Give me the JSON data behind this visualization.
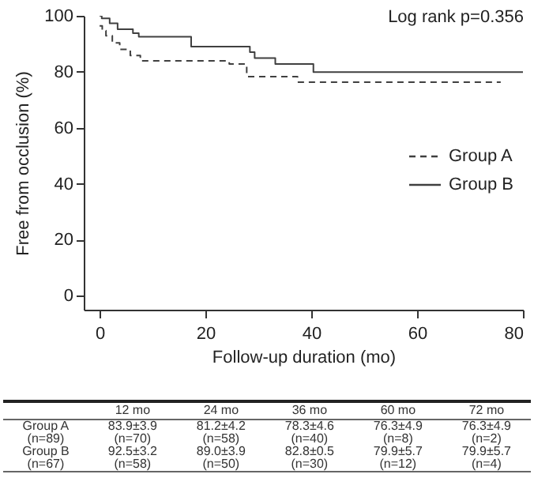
{
  "chart_data": {
    "type": "step",
    "xlabel": "Follow-up duration (mo)",
    "ylabel": "Free from occlusion (%)",
    "xlim": [
      -3,
      80
    ],
    "xticks": [
      0,
      20,
      40,
      60,
      80
    ],
    "ylim": [
      -5,
      100
    ],
    "yticks": [
      0,
      20,
      40,
      60,
      80,
      100
    ],
    "grid": false,
    "legend": "right",
    "series": [
      {
        "name": "Group A",
        "color": "#404040",
        "line_style": "dashed",
        "x": [
          0,
          0.5,
          1.2,
          2.4,
          3.8,
          5.8,
          7.7,
          24.5,
          27.8,
          37.4,
          75.8
        ],
        "values": [
          96.4,
          94.7,
          92.9,
          90.3,
          88,
          85.8,
          83.9,
          82.8,
          78.3,
          76.3,
          76.3
        ]
      },
      {
        "name": "Group B",
        "color": "#404040",
        "line_style": "solid",
        "x": [
          0,
          0.4,
          1.9,
          3.4,
          6.3,
          7.4,
          17.3,
          28.4,
          29.3,
          33.2,
          40.4,
          80
        ],
        "values": [
          100,
          99.1,
          97.3,
          95.2,
          93.8,
          92.5,
          89,
          87,
          84.9,
          82.8,
          79.9,
          79.9
        ]
      }
    ],
    "annotations": [
      "Log rank p=0.356",
      "12 mo",
      "24 mo",
      "36 mo",
      "60 mo",
      "72 mo",
      "Group A",
      "83.9±3.9",
      "81.2±4.2",
      "78.3±4.6",
      "76.3±4.9",
      "76.3±4.9",
      "(n=89)",
      "(n=70)",
      "(n=58)",
      "(n=40)",
      "(n=8)",
      "(n=2)",
      "Group B",
      "92.5±3.2",
      "89.0±3.9",
      "82.8±0.5",
      "79.9±5.7",
      "79.9±5.7",
      "(n=67)",
      "(n=58)",
      "(n=50)",
      "(n=30)",
      "(n=12)",
      "(n=4)"
    ]
  }
}
